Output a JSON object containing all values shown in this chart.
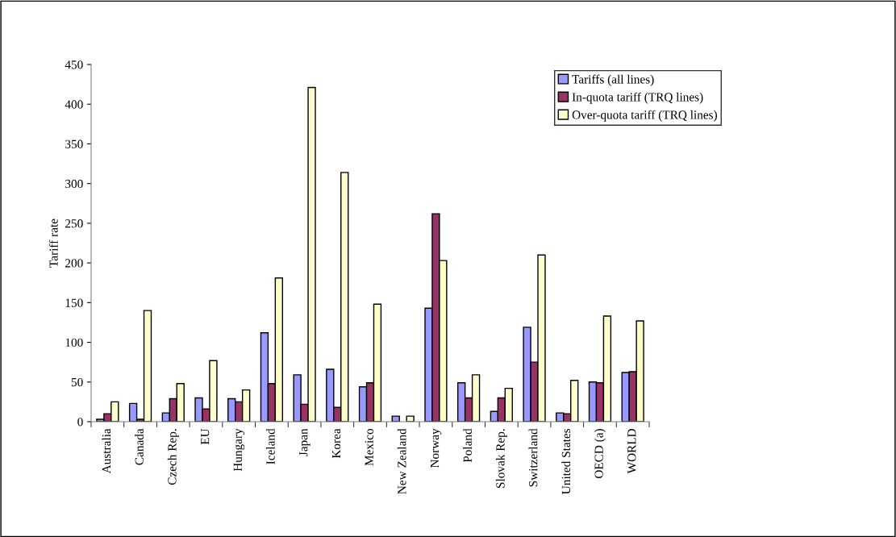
{
  "chart_data": {
    "type": "bar",
    "ylabel": "Tariff rate",
    "categories": [
      "Australia",
      "Canada",
      "Czech Rep.",
      "EU",
      "Hungary",
      "Iceland",
      "Japan",
      "Korea",
      "Mexico",
      "New Zealand",
      "Norway",
      "Poland",
      "Slovak Rep.",
      "Switzerland",
      "United States",
      "OECD (a)",
      "WORLD"
    ],
    "series": [
      {
        "name": "Tariffs (all lines)",
        "color": "#9999ff",
        "values": [
          3,
          23,
          11,
          30,
          29,
          112,
          59,
          66,
          44,
          7,
          143,
          49,
          13,
          119,
          11,
          50,
          62
        ]
      },
      {
        "name": "In-quota tariff (TRQ lines)",
        "color": "#993366",
        "values": [
          10,
          3,
          29,
          16,
          25,
          48,
          22,
          18,
          49,
          null,
          262,
          30,
          30,
          75,
          10,
          49,
          63
        ]
      },
      {
        "name": "Over-quota tariff (TRQ lines)",
        "color": "#ffffcc",
        "values": [
          25,
          140,
          48,
          77,
          40,
          181,
          421,
          314,
          148,
          7,
          203,
          59,
          42,
          210,
          52,
          133,
          127
        ]
      }
    ],
    "ylim": [
      0,
      450
    ],
    "yticks": [
      0,
      50,
      100,
      150,
      200,
      250,
      300,
      350,
      400,
      450
    ],
    "grid": false,
    "legend": "top right"
  }
}
